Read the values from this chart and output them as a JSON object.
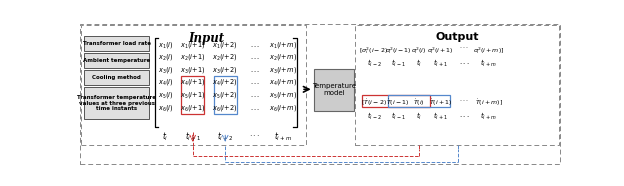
{
  "bg_color": "#ffffff",
  "gray_dash": "#888888",
  "black": "#000000",
  "red": "#cc3333",
  "blue": "#5588cc",
  "label_bg": "#e0e0e0",
  "label_edge": "#555555",
  "tm_bg": "#cccccc",
  "input_labels": [
    "Transformer load rate",
    "Ambient temperature",
    "Cooling method",
    "Transformer temperature\nvalues at three previous\ntime instants"
  ],
  "title_input": "Input",
  "title_output": "Output",
  "temp_model": "Temperature\nmodel"
}
